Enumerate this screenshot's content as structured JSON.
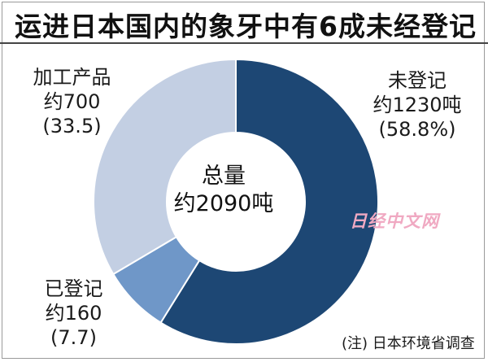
{
  "title": "运进日本国内的象牙中有6成未经登记",
  "chart_data": {
    "type": "pie",
    "title": "运进日本国内的象牙中有6成未经登记",
    "center_label": [
      "总量",
      "约2090吨"
    ],
    "slices": [
      {
        "label": "未登记",
        "value": 1230,
        "value_label": "约1230吨",
        "percent_label": "(58.8%)",
        "color": "#1d4774"
      },
      {
        "label": "已登记",
        "value": 160,
        "value_label": "约160",
        "percent_label": "(7.7)",
        "color": "#6f97c8"
      },
      {
        "label": "加工产品",
        "value": 700,
        "value_label": "约700",
        "percent_label": "(33.5)",
        "color": "#c3cfe3"
      }
    ],
    "note": "(注) 日本环境省调查"
  },
  "watermark": "日经中文网"
}
